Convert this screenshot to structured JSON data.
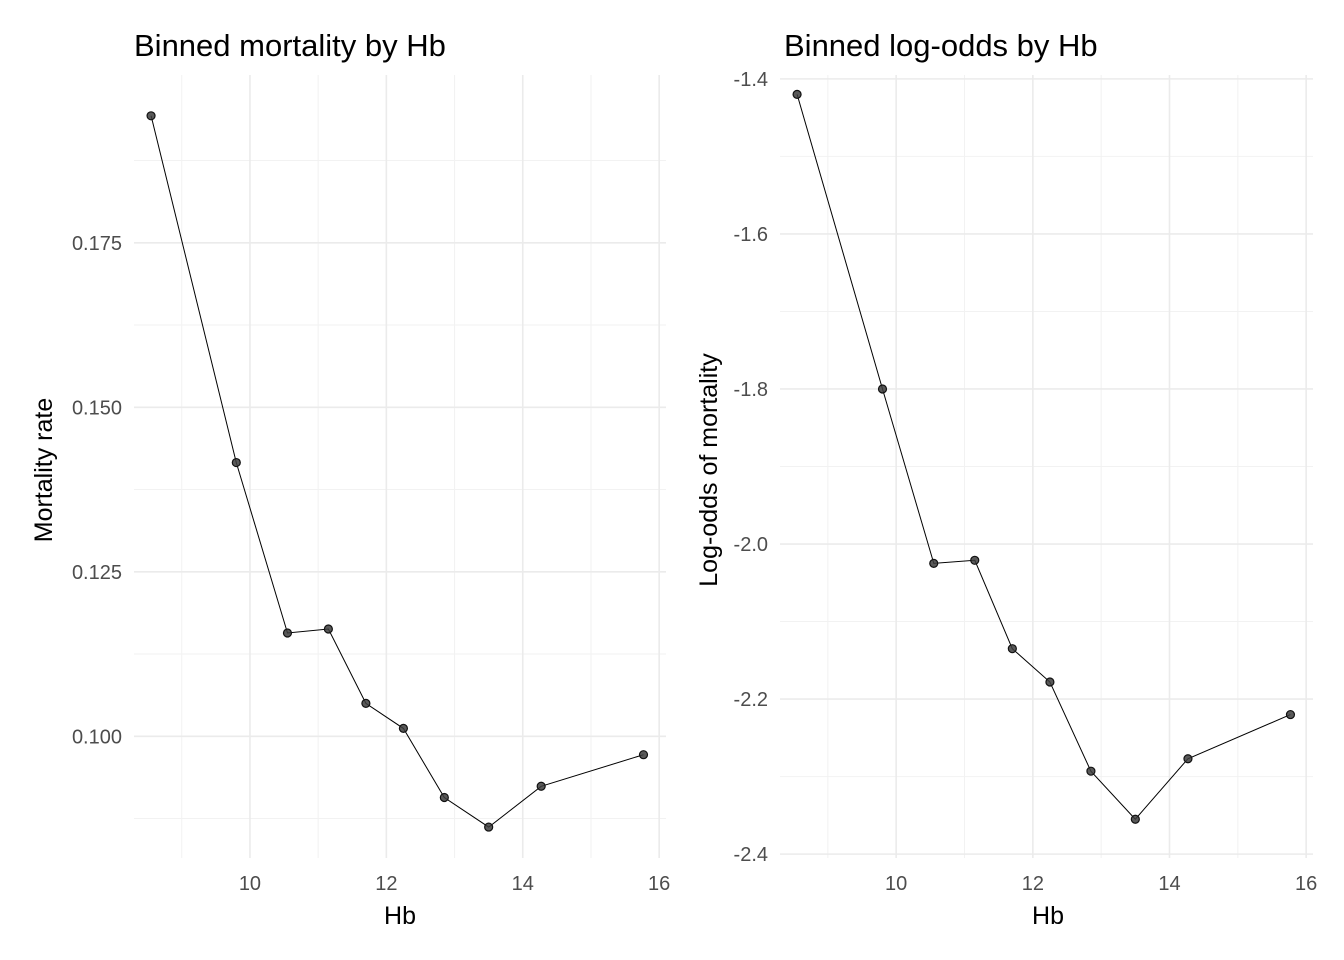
{
  "chart_data": [
    {
      "type": "line",
      "title": "Binned mortality by Hb",
      "xlabel": "Hb",
      "ylabel": "Mortality rate",
      "xlim": [
        8.3,
        16.1
      ],
      "ylim": [
        0.0815,
        0.2005
      ],
      "x_ticks": [
        10,
        12,
        14,
        16
      ],
      "x_tick_labels": [
        "10",
        "12",
        "14",
        "16"
      ],
      "y_ticks": [
        0.1,
        0.125,
        0.15,
        0.175
      ],
      "y_tick_labels": [
        "0.100",
        "0.125",
        "0.150",
        "0.175"
      ],
      "grid": true,
      "series": [
        {
          "x": [
            8.55,
            9.8,
            10.55,
            11.15,
            11.7,
            12.25,
            12.85,
            13.5,
            14.27,
            15.77
          ],
          "values": [
            0.1943,
            0.1416,
            0.1157,
            0.1163,
            0.105,
            0.1012,
            0.0907,
            0.0862,
            0.0924,
            0.0972
          ]
        }
      ]
    },
    {
      "type": "line",
      "title": "Binned log-odds by Hb",
      "xlabel": "Hb",
      "ylabel": "Log-odds of mortality",
      "xlim": [
        8.3,
        16.1
      ],
      "ylim": [
        -2.405,
        -1.395
      ],
      "x_ticks": [
        10,
        12,
        14,
        16
      ],
      "x_tick_labels": [
        "10",
        "12",
        "14",
        "16"
      ],
      "y_ticks": [
        -2.4,
        -2.2,
        -2.0,
        -1.8,
        -1.6,
        -1.4
      ],
      "y_tick_labels": [
        "-2.4",
        "-2.2",
        "-2.0",
        "-1.8",
        "-1.6",
        "-1.4"
      ],
      "grid": true,
      "series": [
        {
          "x": [
            8.55,
            9.8,
            10.55,
            11.15,
            11.7,
            12.25,
            12.85,
            13.5,
            14.27,
            15.77
          ],
          "values": [
            -1.42,
            -1.8,
            -2.025,
            -2.021,
            -2.135,
            -2.178,
            -2.293,
            -2.355,
            -2.277,
            -2.22
          ]
        }
      ]
    }
  ]
}
